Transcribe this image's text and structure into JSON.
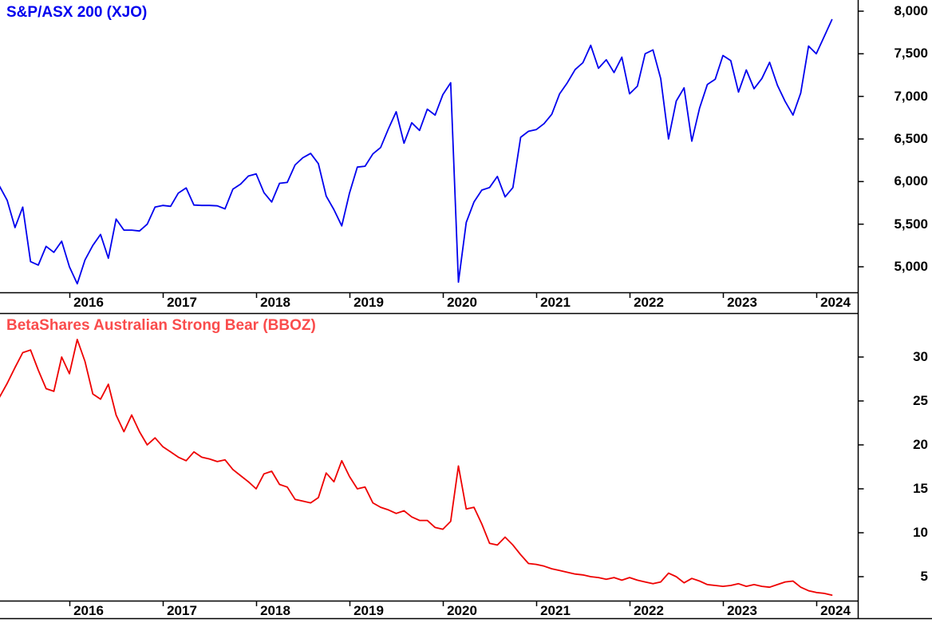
{
  "figure": {
    "top_panel": {
      "title": "S&P/ASX 200 (XJO)",
      "title_color": "#0000EE",
      "line_color": "#0000EE",
      "y_tick_labels": [
        "8,000",
        "7,500",
        "7,000",
        "6,500",
        "6,000",
        "5,500",
        "5,000"
      ]
    },
    "bottom_panel": {
      "title": "BetaShares Australian Strong Bear (BBOZ)",
      "title_color": "#FA4C4C",
      "line_color": "#EE0000",
      "y_tick_labels": [
        "30",
        "25",
        "20",
        "15",
        "10",
        "5"
      ]
    },
    "x_tick_labels": [
      "2016",
      "2017",
      "2018",
      "2019",
      "2020",
      "2021",
      "2022",
      "2023",
      "2024"
    ]
  },
  "chart_data": [
    {
      "type": "line",
      "title": "S&P/ASX 200 (XJO)",
      "series_name": "XJO",
      "color": "#0000EE",
      "x": {
        "start": "2015-04",
        "end": "2024-03",
        "interval": "monthly"
      },
      "x_tick_labels": [
        "2016",
        "2017",
        "2018",
        "2019",
        "2020",
        "2021",
        "2022",
        "2023",
        "2024"
      ],
      "y_axis": {
        "ticks": [
          8000,
          7500,
          7000,
          6500,
          6000,
          5500,
          5000
        ],
        "ylim": [
          4700,
          8130
        ],
        "side": "right"
      },
      "grid": false,
      "legend": false,
      "values": [
        5950,
        5780,
        5460,
        5700,
        5060,
        5020,
        5240,
        5170,
        5300,
        5000,
        4800,
        5080,
        5250,
        5380,
        5100,
        5560,
        5430,
        5430,
        5420,
        5500,
        5700,
        5720,
        5710,
        5865,
        5925,
        5725,
        5720,
        5720,
        5715,
        5680,
        5910,
        5970,
        6065,
        6090,
        5870,
        5760,
        5980,
        5990,
        6195,
        6280,
        6330,
        6210,
        5830,
        5670,
        5480,
        5865,
        6170,
        6180,
        6325,
        6400,
        6620,
        6820,
        6450,
        6690,
        6600,
        6850,
        6780,
        7020,
        7160,
        4820,
        5520,
        5760,
        5900,
        5930,
        6060,
        5820,
        5930,
        6520,
        6590,
        6610,
        6680,
        6790,
        7030,
        7160,
        7315,
        7395,
        7600,
        7330,
        7430,
        7280,
        7460,
        7030,
        7120,
        7500,
        7545,
        7210,
        6500,
        6945,
        7100,
        6475,
        6865,
        7140,
        7200,
        7480,
        7420,
        7050,
        7310,
        7090,
        7210,
        7400,
        7130,
        6940,
        6780,
        7040,
        7590,
        7500,
        7700,
        7900
      ]
    },
    {
      "type": "line",
      "title": "BetaShares Australian Strong Bear (BBOZ)",
      "series_name": "BBOZ",
      "color": "#EE0000",
      "x": {
        "start": "2015-04",
        "end": "2024-03",
        "interval": "monthly"
      },
      "x_tick_labels": [
        "2016",
        "2017",
        "2018",
        "2019",
        "2020",
        "2021",
        "2022",
        "2023",
        "2024"
      ],
      "y_axis": {
        "ticks": [
          30,
          25,
          20,
          15,
          10,
          5
        ],
        "ylim": [
          2.3,
          35
        ],
        "side": "right"
      },
      "grid": false,
      "legend": false,
      "values": [
        25.4,
        27.0,
        28.8,
        30.5,
        30.8,
        28.5,
        26.4,
        26.1,
        30.0,
        28.1,
        32.0,
        29.5,
        25.8,
        25.2,
        26.9,
        23.4,
        21.5,
        23.4,
        21.5,
        20.0,
        20.8,
        19.8,
        19.2,
        18.6,
        18.2,
        19.2,
        18.6,
        18.4,
        18.1,
        18.3,
        17.2,
        16.5,
        15.8,
        15.0,
        16.7,
        17.0,
        15.5,
        15.2,
        13.8,
        13.6,
        13.4,
        14.0,
        16.8,
        15.8,
        18.2,
        16.4,
        15.0,
        15.2,
        13.4,
        12.9,
        12.6,
        12.2,
        12.5,
        11.8,
        11.4,
        11.4,
        10.6,
        10.4,
        11.3,
        17.6,
        12.7,
        12.9,
        11.0,
        8.8,
        8.6,
        9.5,
        8.6,
        7.5,
        6.5,
        6.4,
        6.2,
        5.9,
        5.7,
        5.5,
        5.3,
        5.2,
        5.0,
        4.9,
        4.7,
        4.9,
        4.6,
        4.9,
        4.6,
        4.4,
        4.2,
        4.4,
        5.4,
        5.0,
        4.3,
        4.8,
        4.5,
        4.1,
        4.0,
        3.9,
        4.0,
        4.2,
        3.9,
        4.1,
        3.9,
        3.8,
        4.1,
        4.4,
        4.5,
        3.8,
        3.4,
        3.2,
        3.1,
        2.9
      ]
    }
  ]
}
